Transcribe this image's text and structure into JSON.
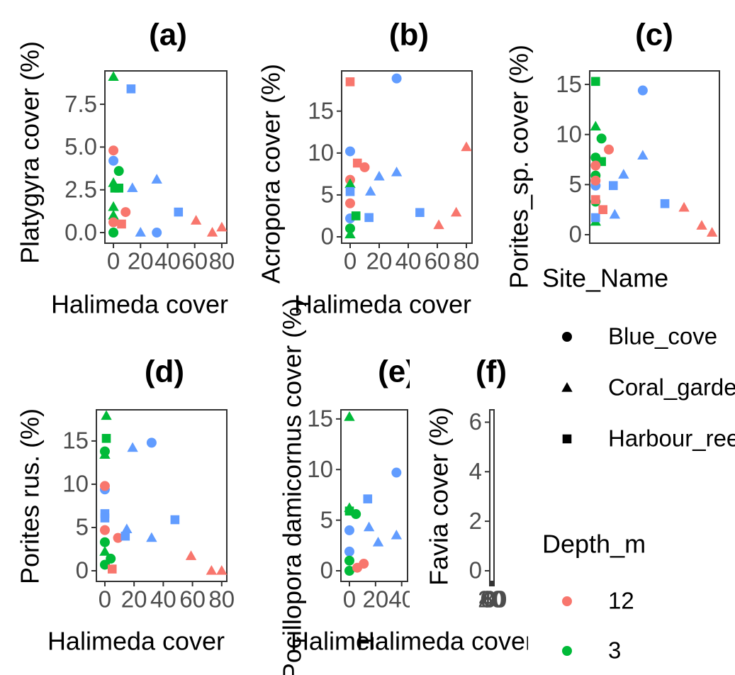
{
  "chart_data": [
    {
      "type": "scatter",
      "title": "(a)",
      "xlabel": "Halimeda cover",
      "ylabel": "Platygyra cover (%)",
      "xlim": [
        -6.3,
        83.7
      ],
      "ylim": [
        -0.62,
        9.45
      ],
      "xticks": [
        0,
        20,
        40,
        60,
        80
      ],
      "yticks": [
        {
          "value": 0,
          "label": "0.0"
        },
        2.5,
        {
          "value": 5,
          "label": "5.0"
        },
        7.5
      ],
      "series": [
        {
          "shape": "triangle",
          "color": "#00BA38",
          "x": [
            0,
            0,
            0,
            0
          ],
          "values": [
            9.1,
            2.9,
            1.5,
            1.0
          ]
        },
        {
          "shape": "square",
          "color": "#619CFF",
          "x": [
            13,
            48
          ],
          "values": [
            8.4,
            1.2
          ]
        },
        {
          "shape": "circle",
          "color": "#F8766D",
          "x": [
            0,
            9,
            0
          ],
          "values": [
            4.8,
            1.2,
            0.6
          ]
        },
        {
          "shape": "circle",
          "color": "#619CFF",
          "x": [
            0,
            0,
            32
          ],
          "values": [
            4.2,
            0,
            0
          ]
        },
        {
          "shape": "circle",
          "color": "#00BA38",
          "x": [
            4,
            0
          ],
          "values": [
            3.6,
            0
          ]
        },
        {
          "shape": "square",
          "color": "#00BA38",
          "x": [
            1,
            4
          ],
          "values": [
            2.6,
            2.6
          ]
        },
        {
          "shape": "triangle",
          "color": "#619CFF",
          "x": [
            14,
            32,
            20
          ],
          "values": [
            2.6,
            3.1,
            0
          ]
        },
        {
          "shape": "square",
          "color": "#F8766D",
          "x": [
            6
          ],
          "values": [
            0.5
          ]
        },
        {
          "shape": "triangle",
          "color": "#F8766D",
          "x": [
            61,
            73,
            80
          ],
          "values": [
            0.7,
            0,
            0.3
          ]
        }
      ]
    },
    {
      "type": "scatter",
      "title": "(b)",
      "xlabel": "Halimeda cover",
      "ylabel": "Acropora cover (%)",
      "xlim": [
        -5.85,
        83.9
      ],
      "ylim": [
        -0.76,
        19.8
      ],
      "xticks": [
        0,
        20,
        40,
        60,
        80
      ],
      "yticks": [
        0,
        5,
        10,
        15
      ],
      "series": [
        {
          "shape": "square",
          "color": "#F8766D",
          "x": [
            0,
            5
          ],
          "values": [
            18.5,
            8.8
          ]
        },
        {
          "shape": "circle",
          "color": "#619CFF",
          "x": [
            32,
            0,
            0
          ],
          "values": [
            18.9,
            10.2,
            2.2
          ]
        },
        {
          "shape": "circle",
          "color": "#F8766D",
          "x": [
            10,
            0,
            0
          ],
          "values": [
            8.3,
            6.8,
            4
          ]
        },
        {
          "shape": "triangle",
          "color": "#619CFF",
          "x": [
            20,
            32,
            14
          ],
          "values": [
            7.2,
            7.7,
            5.4
          ]
        },
        {
          "shape": "triangle",
          "color": "#F8766D",
          "x": [
            80,
            61,
            73
          ],
          "values": [
            10.7,
            1.4,
            2.9
          ]
        },
        {
          "shape": "triangle",
          "color": "#00BA38",
          "x": [
            0,
            0
          ],
          "values": [
            6.3,
            0.3
          ]
        },
        {
          "shape": "square",
          "color": "#619CFF",
          "x": [
            0,
            13,
            48
          ],
          "values": [
            5.4,
            2.3,
            2.9
          ]
        },
        {
          "shape": "square",
          "color": "#00BA38",
          "x": [
            4
          ],
          "values": [
            2.5
          ]
        },
        {
          "shape": "circle",
          "color": "#00BA38",
          "x": [
            0
          ],
          "values": [
            1.0
          ]
        }
      ]
    },
    {
      "type": "scatter",
      "title": "(c)",
      "ylabel": "Porites_sp. cover (%)",
      "xlim": [
        -4,
        84
      ],
      "ylim": [
        -0.85,
        16.35
      ],
      "yticks": [
        0,
        5,
        10,
        15
      ],
      "series": [
        {
          "shape": "square",
          "color": "#00BA38",
          "x": [
            0,
            4
          ],
          "values": [
            15.3,
            7.3
          ]
        },
        {
          "shape": "circle",
          "color": "#619CFF",
          "x": [
            32,
            0
          ],
          "values": [
            14.4,
            4.9
          ]
        },
        {
          "shape": "triangle",
          "color": "#00BA38",
          "x": [
            0,
            0
          ],
          "values": [
            10.8,
            1.3
          ]
        },
        {
          "shape": "circle",
          "color": "#00BA38",
          "x": [
            4,
            0,
            0,
            0
          ],
          "values": [
            9.6,
            7.7,
            5.9,
            3.3
          ]
        },
        {
          "shape": "circle",
          "color": "#F8766D",
          "x": [
            9,
            0,
            0
          ],
          "values": [
            8.5,
            6.9,
            5.4
          ]
        },
        {
          "shape": "triangle",
          "color": "#619CFF",
          "x": [
            19,
            32,
            13
          ],
          "values": [
            6,
            7.9,
            2.0
          ]
        },
        {
          "shape": "square",
          "color": "#619CFF",
          "x": [
            12,
            0,
            47
          ],
          "values": [
            4.9,
            1.7,
            3.1
          ]
        },
        {
          "shape": "square",
          "color": "#F8766D",
          "x": [
            0,
            5
          ],
          "values": [
            3.5,
            2.5
          ]
        },
        {
          "shape": "triangle",
          "color": "#F8766D",
          "x": [
            60,
            72,
            79
          ],
          "values": [
            2.7,
            0.9,
            0.2
          ]
        }
      ]
    },
    {
      "type": "scatter",
      "title": "(d)",
      "xlabel": "Halimeda cover",
      "ylabel": "Porites rus. (%)",
      "xlim": [
        -5.8,
        83.5
      ],
      "ylim": [
        -1.23,
        18.6
      ],
      "xticks": [
        0,
        20,
        40,
        60,
        80
      ],
      "yticks": [
        0,
        5,
        10,
        15
      ],
      "series": [
        {
          "shape": "triangle",
          "color": "#00BA38",
          "x": [
            1,
            0,
            0
          ],
          "values": [
            17.9,
            13.4,
            2.2
          ]
        },
        {
          "shape": "square",
          "color": "#00BA38",
          "x": [
            1
          ],
          "values": [
            15.3
          ]
        },
        {
          "shape": "circle",
          "color": "#00BA38",
          "x": [
            0,
            0,
            4,
            0
          ],
          "values": [
            13.8,
            3.3,
            1.4,
            0.7
          ]
        },
        {
          "shape": "circle",
          "color": "#619CFF",
          "x": [
            32,
            0
          ],
          "values": [
            14.8,
            9.4
          ]
        },
        {
          "shape": "triangle",
          "color": "#619CFF",
          "x": [
            19,
            15,
            32
          ],
          "values": [
            14.2,
            4.8,
            3.8
          ]
        },
        {
          "shape": "circle",
          "color": "#F8766D",
          "x": [
            0,
            9,
            0
          ],
          "values": [
            9.8,
            3.8,
            4.7
          ]
        },
        {
          "shape": "square",
          "color": "#619CFF",
          "x": [
            0,
            0,
            48,
            14
          ],
          "values": [
            6.6,
            6.1,
            5.9,
            4.0
          ]
        },
        {
          "shape": "square",
          "color": "#F8766D",
          "x": [
            5
          ],
          "values": [
            0.2
          ]
        },
        {
          "shape": "triangle",
          "color": "#F8766D",
          "x": [
            59,
            73,
            80
          ],
          "values": [
            1.7,
            0,
            0
          ]
        }
      ]
    },
    {
      "type": "scatter",
      "title": "(e)",
      "xlabel": "Halimeda cover",
      "ylabel": "Pocillopora damicornus cover (%)",
      "xlim": [
        -6.5,
        44.5
      ],
      "ylim": [
        -1.05,
        15.9
      ],
      "xticks": [
        0,
        20,
        40
      ],
      "yticks": [
        0,
        5,
        10,
        15
      ],
      "series": [
        {
          "shape": "triangle",
          "color": "#00BA38",
          "x": [
            0,
            0
          ],
          "values": [
            15.2,
            6.2
          ]
        },
        {
          "shape": "circle",
          "color": "#619CFF",
          "x": [
            36,
            0,
            0
          ],
          "values": [
            9.7,
            4.0,
            1.9
          ]
        },
        {
          "shape": "square",
          "color": "#619CFF",
          "x": [
            14
          ],
          "values": [
            7.1
          ]
        },
        {
          "shape": "circle",
          "color": "#00BA38",
          "x": [
            5,
            0,
            0
          ],
          "values": [
            5.6,
            1.0,
            0
          ]
        },
        {
          "shape": "square",
          "color": "#00BA38",
          "x": [
            0
          ],
          "values": [
            5.9
          ]
        },
        {
          "shape": "triangle",
          "color": "#619CFF",
          "x": [
            15,
            36,
            22
          ],
          "values": [
            4.3,
            3.5,
            2.8
          ]
        },
        {
          "shape": "circle",
          "color": "#F8766D",
          "x": [
            11,
            6
          ],
          "values": [
            0.7,
            0.3
          ]
        }
      ]
    },
    {
      "type": "scatter",
      "title": "(f)",
      "xlabel": "Halimeda cover",
      "ylabel": "Favia cover (%)",
      "xlim": [
        0,
        80
      ],
      "ylim": [
        -0.43,
        6.5
      ],
      "xticks": [
        0,
        20,
        40,
        60,
        80
      ],
      "yticks": [
        0,
        2,
        4,
        6
      ],
      "series": []
    }
  ],
  "legend": {
    "shape_title": "Site_Name",
    "shape_labels": [
      "Blue_cove",
      "Coral_garden",
      "Harbour_reef"
    ],
    "shapes": [
      "circle",
      "triangle",
      "square"
    ],
    "color_title": "Depth_m",
    "color_labels": [
      "12",
      "3"
    ],
    "colors": [
      "#F8766D",
      "#00BA38"
    ]
  }
}
